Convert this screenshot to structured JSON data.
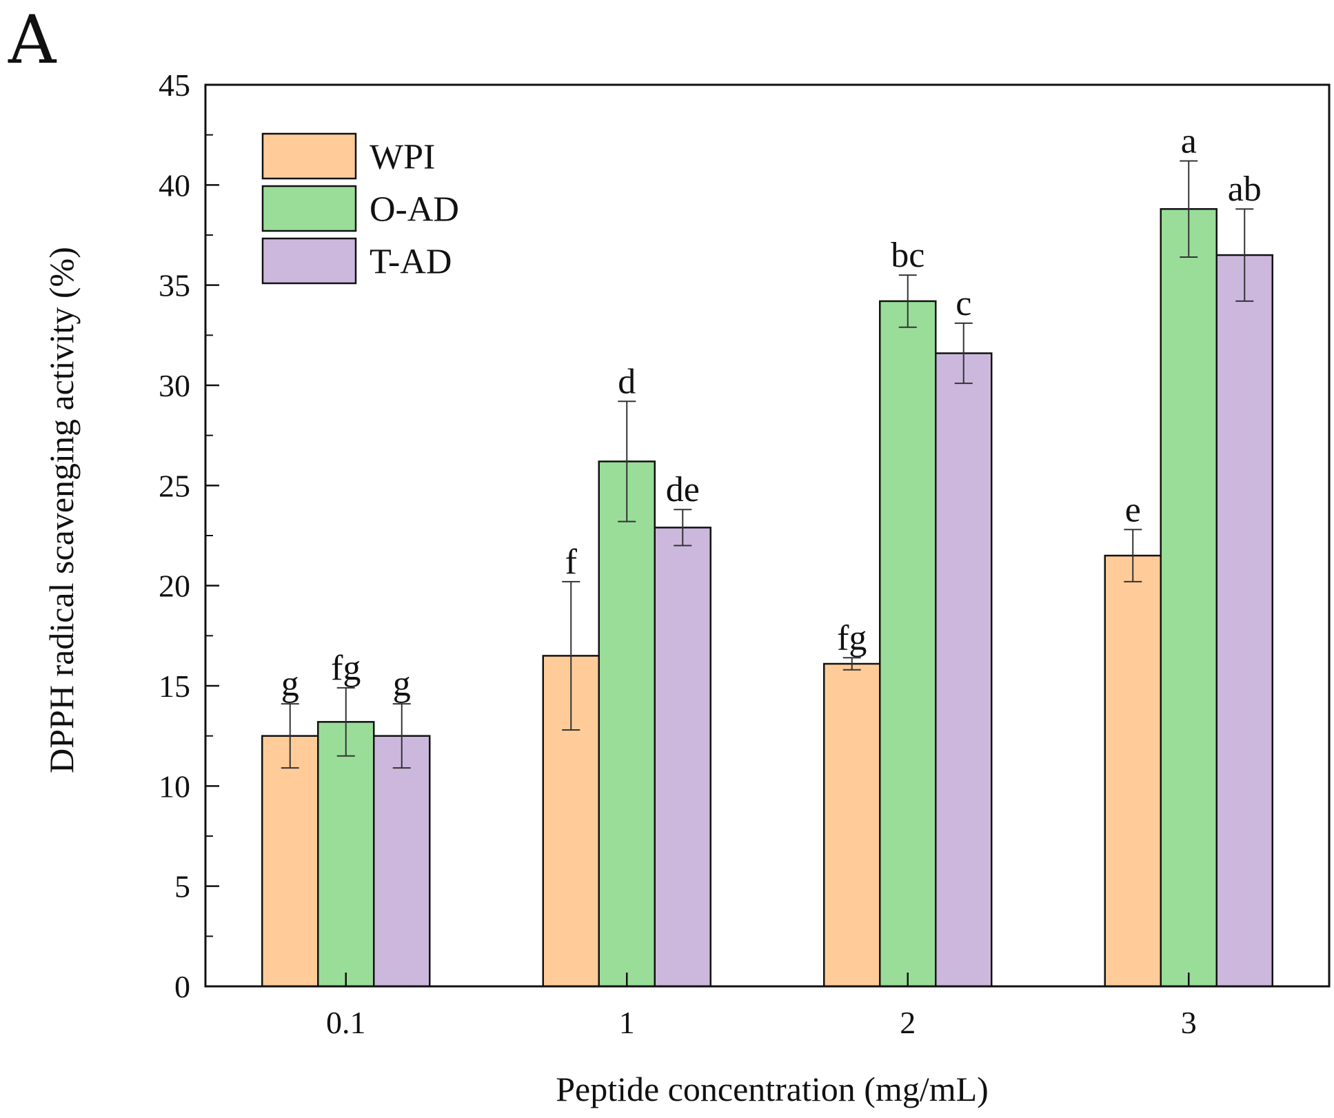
{
  "chart_data": {
    "type": "bar",
    "panel_label": "A",
    "title": "",
    "xlabel": "Peptide concentration (mg/mL)",
    "ylabel": "DPPH radical scavenging activity (%)",
    "categories": [
      "0.1",
      "1",
      "2",
      "3"
    ],
    "ylim": [
      0,
      45
    ],
    "yticks": [
      "0",
      "5",
      "10",
      "15",
      "20",
      "25",
      "30",
      "35",
      "40",
      "45"
    ],
    "grid": false,
    "legend_position": "top-left",
    "series": [
      {
        "name": "WPI",
        "color": "#FFCC99",
        "values": [
          12.5,
          16.5,
          16.1,
          21.5
        ],
        "errors": [
          1.6,
          3.7,
          0.3,
          1.3
        ],
        "labels": [
          "g",
          "f",
          "fg",
          "e"
        ]
      },
      {
        "name": "O-AD",
        "color": "#99DD99",
        "values": [
          13.2,
          26.2,
          34.2,
          38.8
        ],
        "errors": [
          1.7,
          3.0,
          1.3,
          2.4
        ],
        "labels": [
          "fg",
          "d",
          "bc",
          "a"
        ]
      },
      {
        "name": "T-AD",
        "color": "#CCB8DD",
        "values": [
          12.5,
          22.9,
          31.6,
          36.5
        ],
        "errors": [
          1.6,
          0.9,
          1.5,
          2.3
        ],
        "labels": [
          "g",
          "de",
          "c",
          "ab"
        ]
      }
    ]
  }
}
